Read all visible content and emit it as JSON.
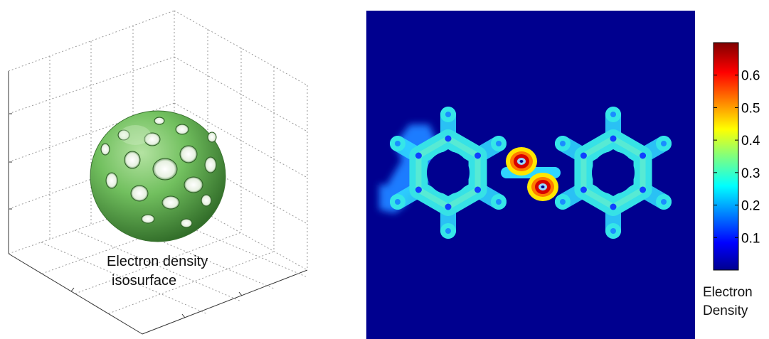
{
  "chart_data": [
    {
      "type": "other",
      "panel": "left",
      "description_label_lines": [
        "Electron density",
        "isosurface"
      ],
      "axes": "3d-box",
      "grid": true,
      "surface_color": "#6fbf5f"
    },
    {
      "type": "heatmap",
      "panel": "right",
      "colormap": "jet",
      "colorbar": {
        "title_lines": [
          "Electron",
          "Density"
        ],
        "ticks": [
          0.1,
          0.2,
          0.3,
          0.4,
          0.5,
          0.6
        ],
        "tick_labels": [
          "0.1",
          "0.2",
          "0.3",
          "0.4",
          "0.5",
          "0.6"
        ],
        "range": [
          0,
          0.7
        ]
      },
      "background_value": 0.0,
      "ring_value": 0.28,
      "bond_value": 0.65
    }
  ],
  "labels": {
    "iso_line1": "Electron density",
    "iso_line2": "isosurface",
    "cb_title_1": "Electron",
    "cb_title_2": "Density"
  }
}
